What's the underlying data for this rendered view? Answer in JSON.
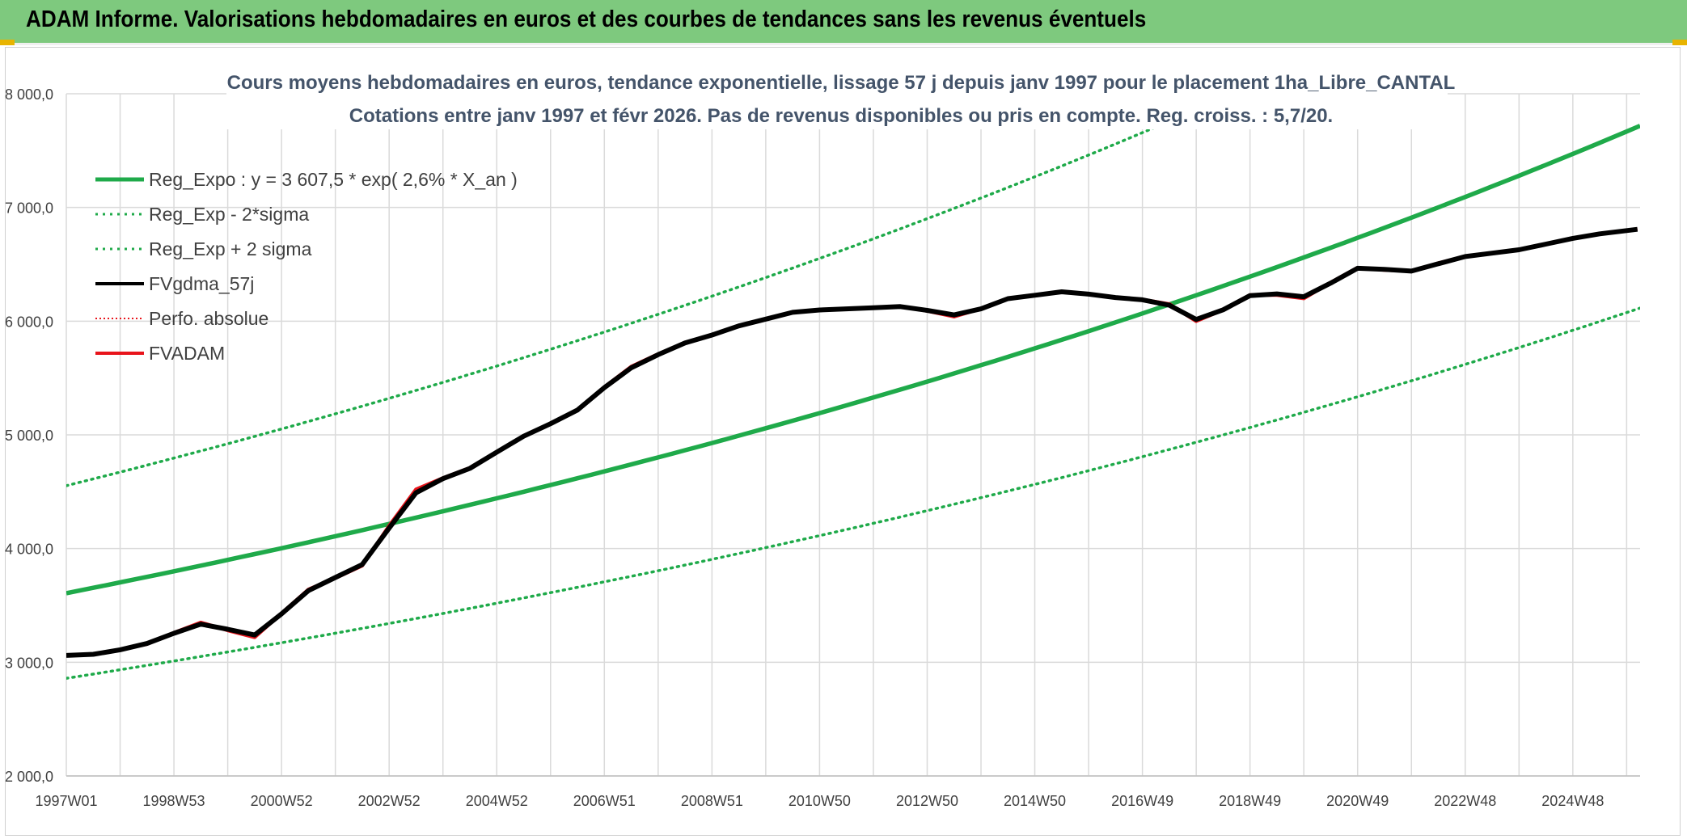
{
  "header": {
    "title": "ADAM Informe. Valorisations hebdomadaires en euros et des courbes de tendances sans les revenus éventuels"
  },
  "colors": {
    "banner": "#7ec97e",
    "green": "#1faa4a",
    "red": "#e8141b",
    "black": "#000000",
    "grid": "#dadada",
    "title_text": "#44546a"
  },
  "chart_data": {
    "type": "line",
    "title_line1": "Cours moyens hebdomadaires en euros, tendance exponentielle, lissage 57 j depuis janv 1997 pour le placement 1ha_Libre_CANTAL",
    "title_line2": "Cotations entre janv 1997 et févr 2026. Pas de revenus disponibles ou pris en compte. Reg. croiss. : 5,7/20.",
    "xlabel": "",
    "ylabel": "",
    "xlim": [
      1997.0,
      2026.25
    ],
    "ylim": [
      2000,
      8000
    ],
    "y_ticks": [
      2000,
      3000,
      4000,
      5000,
      6000,
      7000,
      8000
    ],
    "y_tick_labels": [
      "2 000,0",
      "3 000,0",
      "4 000,0",
      "5 000,0",
      "6 000,0",
      "7 000,0",
      "8 000,0"
    ],
    "x_tick_labels": [
      "1997W01",
      "1998W53",
      "2000W52",
      "2002W52",
      "2004W52",
      "2006W51",
      "2008W51",
      "2010W50",
      "2012W50",
      "2014W50",
      "2016W49",
      "2018W49",
      "2020W49",
      "2022W48",
      "2024W48"
    ],
    "x_tick_positions": [
      1997.0,
      1999.0,
      2001.0,
      2003.0,
      2005.0,
      2007.0,
      2009.0,
      2011.0,
      2013.0,
      2015.0,
      2017.0,
      2019.0,
      2021.0,
      2023.0,
      2025.0
    ],
    "grid": true,
    "legend_position": "top-left",
    "regression": {
      "a": 3607.5,
      "rate": 0.026,
      "sigma_factor": 1.262
    },
    "legend": [
      {
        "name": "Reg_Expo : y = 3 607,5 * exp( 2,6% *  X_an )",
        "color": "#1faa4a",
        "style": "solid",
        "width": 5
      },
      {
        "name": "Reg_Exp - 2*sigma",
        "color": "#1faa4a",
        "style": "dotted",
        "width": 3
      },
      {
        "name": "Reg_Exp + 2 sigma",
        "color": "#1faa4a",
        "style": "dotted",
        "width": 3
      },
      {
        "name": "FVgdma_57j",
        "color": "#000000",
        "style": "solid",
        "width": 4
      },
      {
        "name": "Perfo. absolue",
        "color": "#e8141b",
        "style": "dotted",
        "width": 2
      },
      {
        "name": "FVADAM",
        "color": "#e8141b",
        "style": "solid",
        "width": 4
      }
    ],
    "series": [
      {
        "name": "FVADAM",
        "x": [
          1997.0,
          1997.5,
          1998.0,
          1998.5,
          1999.0,
          1999.5,
          2000.0,
          2000.5,
          2001.0,
          2001.5,
          2002.0,
          2002.5,
          2003.0,
          2003.5,
          2004.0,
          2004.5,
          2005.0,
          2005.5,
          2006.0,
          2006.5,
          2007.0,
          2007.5,
          2008.0,
          2008.5,
          2009.0,
          2009.5,
          2010.0,
          2010.5,
          2011.0,
          2011.5,
          2012.0,
          2012.5,
          2013.0,
          2013.5,
          2014.0,
          2014.5,
          2015.0,
          2015.5,
          2016.0,
          2016.5,
          2017.0,
          2017.5,
          2018.0,
          2018.5,
          2019.0,
          2019.5,
          2020.0,
          2020.5,
          2021.0,
          2021.5,
          2022.0,
          2022.5,
          2023.0,
          2023.5,
          2024.0,
          2024.5,
          2025.0,
          2025.5,
          2026.2
        ],
        "values": [
          3060,
          3070,
          3110,
          3160,
          3260,
          3350,
          3280,
          3220,
          3430,
          3640,
          3740,
          3850,
          4200,
          4520,
          4620,
          4710,
          4850,
          4990,
          5100,
          5220,
          5420,
          5600,
          5710,
          5810,
          5880,
          5960,
          6020,
          6080,
          6100,
          6110,
          6120,
          6130,
          6090,
          6040,
          6110,
          6200,
          6230,
          6260,
          6240,
          6210,
          6190,
          6150,
          6000,
          6100,
          6230,
          6230,
          6200,
          6340,
          6470,
          6450,
          6440,
          6510,
          6570,
          6600,
          6630,
          6680,
          6730,
          6770,
          6810
        ]
      },
      {
        "name": "FVgdma_57j",
        "x": [
          1997.0,
          1997.5,
          1998.0,
          1998.5,
          1999.0,
          1999.5,
          2000.0,
          2000.5,
          2001.0,
          2001.5,
          2002.0,
          2002.5,
          2003.0,
          2003.5,
          2004.0,
          2004.5,
          2005.0,
          2005.5,
          2006.0,
          2006.5,
          2007.0,
          2007.5,
          2008.0,
          2008.5,
          2009.0,
          2009.5,
          2010.0,
          2010.5,
          2011.0,
          2011.5,
          2012.0,
          2012.5,
          2013.0,
          2013.5,
          2014.0,
          2014.5,
          2015.0,
          2015.5,
          2016.0,
          2016.5,
          2017.0,
          2017.5,
          2018.0,
          2018.5,
          2019.0,
          2019.5,
          2020.0,
          2020.5,
          2021.0,
          2021.5,
          2022.0,
          2022.5,
          2023.0,
          2023.5,
          2024.0,
          2024.5,
          2025.0,
          2025.5,
          2026.2
        ],
        "values": [
          3060,
          3070,
          3110,
          3165,
          3255,
          3335,
          3290,
          3240,
          3425,
          3630,
          3745,
          3860,
          4180,
          4490,
          4615,
          4705,
          4848,
          4988,
          5098,
          5218,
          5415,
          5590,
          5705,
          5808,
          5878,
          5958,
          6018,
          6078,
          6098,
          6108,
          6118,
          6128,
          6095,
          6055,
          6108,
          6198,
          6228,
          6258,
          6238,
          6208,
          6188,
          6140,
          6015,
          6100,
          6225,
          6240,
          6215,
          6335,
          6465,
          6455,
          6440,
          6505,
          6568,
          6598,
          6628,
          6678,
          6728,
          6768,
          6808
        ]
      }
    ]
  }
}
